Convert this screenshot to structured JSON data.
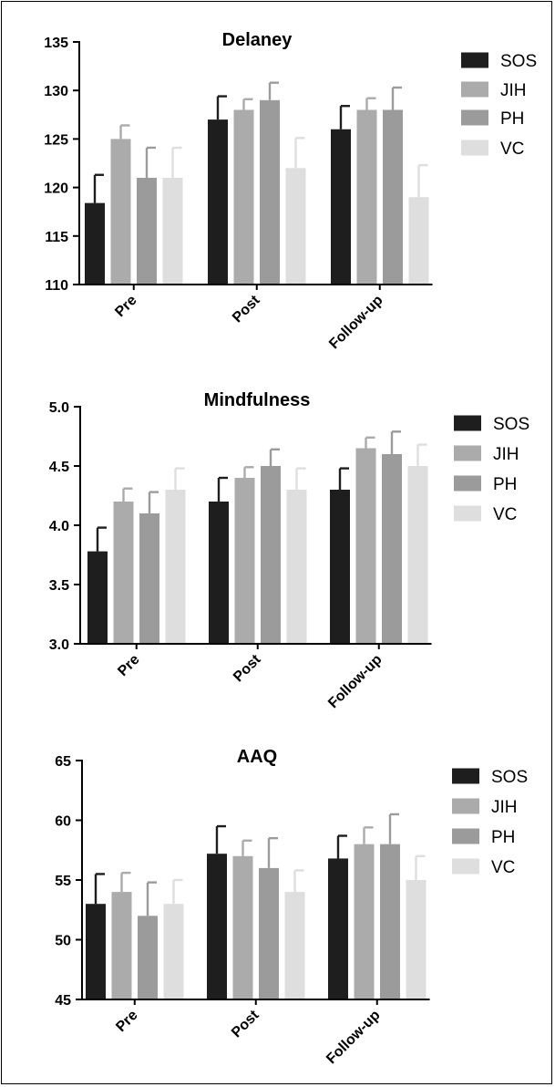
{
  "colors": {
    "SOS": "#1e1e1e",
    "JIH": "#ababab",
    "PH": "#9b9b9b",
    "VC": "#dedede",
    "axis": "#000000"
  },
  "chart_data": [
    {
      "type": "bar",
      "title": "Delaney",
      "categories": [
        "Pre",
        "Post",
        "Follow-up"
      ],
      "ylim": [
        110,
        135
      ],
      "yticks": [
        110,
        115,
        120,
        125,
        130,
        135
      ],
      "legend_position": "right",
      "series": [
        {
          "name": "SOS",
          "values": [
            118.4,
            127,
            126
          ],
          "errors": [
            2.9,
            2.4,
            2.4
          ]
        },
        {
          "name": "JIH",
          "values": [
            125,
            128,
            128
          ],
          "errors": [
            1.4,
            1.1,
            1.2
          ]
        },
        {
          "name": "PH",
          "values": [
            121,
            129,
            128
          ],
          "errors": [
            3.1,
            1.8,
            2.3
          ]
        },
        {
          "name": "VC",
          "values": [
            121,
            122,
            119
          ],
          "errors": [
            3.1,
            3.1,
            3.3
          ]
        }
      ]
    },
    {
      "type": "bar",
      "title": "Mindfulness",
      "categories": [
        "Pre",
        "Post",
        "Follow-up"
      ],
      "ylim": [
        3.0,
        5.0
      ],
      "yticks": [
        "3.0",
        "3.5",
        "4.0",
        "4.5",
        "5.0"
      ],
      "legend_position": "right",
      "series": [
        {
          "name": "SOS",
          "values": [
            3.78,
            4.2,
            4.3
          ],
          "errors": [
            0.2,
            0.2,
            0.18
          ]
        },
        {
          "name": "JIH",
          "values": [
            4.2,
            4.4,
            4.65
          ],
          "errors": [
            0.11,
            0.09,
            0.09
          ]
        },
        {
          "name": "PH",
          "values": [
            4.1,
            4.5,
            4.6
          ],
          "errors": [
            0.18,
            0.14,
            0.19
          ]
        },
        {
          "name": "VC",
          "values": [
            4.3,
            4.3,
            4.5
          ],
          "errors": [
            0.18,
            0.18,
            0.18
          ]
        }
      ]
    },
    {
      "type": "bar",
      "title": "AAQ",
      "categories": [
        "Pre",
        "Post",
        "Follow-up"
      ],
      "ylim": [
        45,
        65
      ],
      "yticks": [
        45,
        50,
        55,
        60,
        65
      ],
      "legend_position": "right",
      "series": [
        {
          "name": "SOS",
          "values": [
            53,
            57.2,
            56.8
          ],
          "errors": [
            2.5,
            2.3,
            1.9
          ]
        },
        {
          "name": "JIH",
          "values": [
            54,
            57,
            58
          ],
          "errors": [
            1.6,
            1.3,
            1.4
          ]
        },
        {
          "name": "PH",
          "values": [
            52,
            56,
            58
          ],
          "errors": [
            2.8,
            2.5,
            2.5
          ]
        },
        {
          "name": "VC",
          "values": [
            53,
            54,
            55
          ],
          "errors": [
            2,
            1.8,
            2
          ]
        }
      ]
    }
  ]
}
